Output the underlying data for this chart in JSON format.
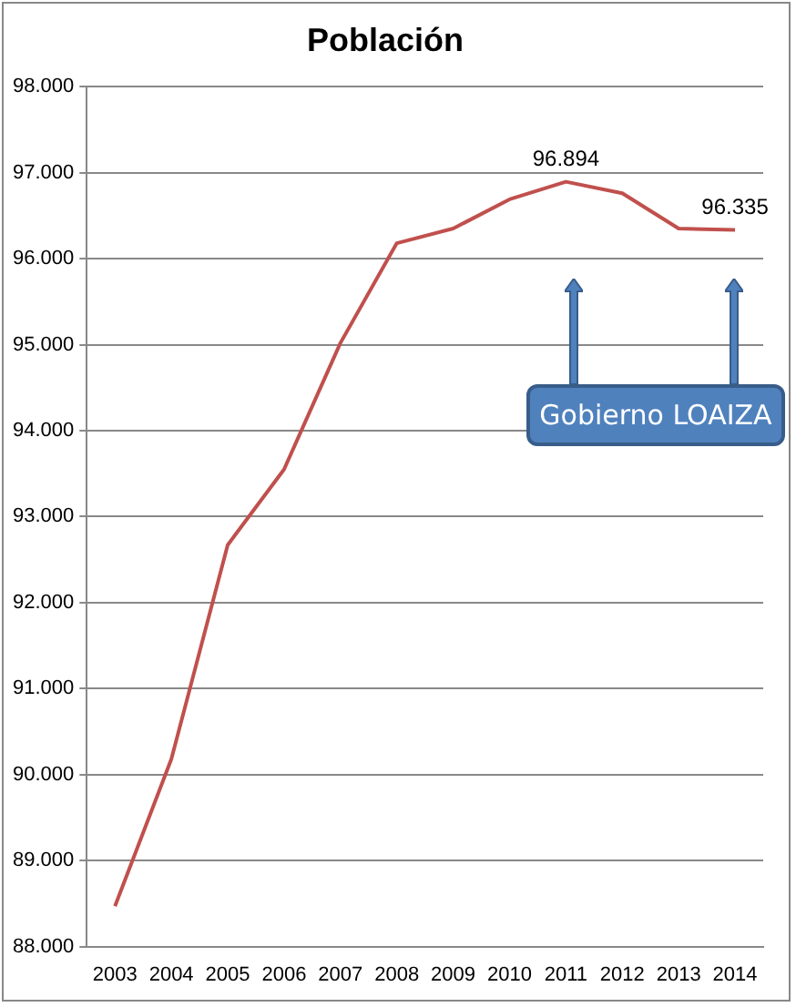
{
  "chart_data": {
    "type": "line",
    "title": "Población",
    "categories": [
      "2003",
      "2004",
      "2005",
      "2006",
      "2007",
      "2008",
      "2009",
      "2010",
      "2011",
      "2012",
      "2013",
      "2014"
    ],
    "series": [
      {
        "color": "#c0504d",
        "values": [
          88470,
          90180,
          92670,
          93550,
          95020,
          96180,
          96350,
          96690,
          96894,
          96760,
          96350,
          96335
        ],
        "value_labels": [
          null,
          null,
          null,
          null,
          null,
          null,
          null,
          null,
          "96.894",
          null,
          null,
          "96.335"
        ]
      }
    ],
    "ylim": [
      88000,
      98000
    ],
    "yticks": [
      {
        "value": 88000,
        "label": "88.000"
      },
      {
        "value": 89000,
        "label": "89.000"
      },
      {
        "value": 90000,
        "label": "90.000"
      },
      {
        "value": 91000,
        "label": "91.000"
      },
      {
        "value": 92000,
        "label": "92.000"
      },
      {
        "value": 93000,
        "label": "93.000"
      },
      {
        "value": 94000,
        "label": "94.000"
      },
      {
        "value": 95000,
        "label": "95.000"
      },
      {
        "value": 96000,
        "label": "96.000"
      },
      {
        "value": 97000,
        "label": "97.000"
      },
      {
        "value": 98000,
        "label": "98.000"
      }
    ],
    "grid": "y",
    "legend": false,
    "marker": "none",
    "line_style": "solid",
    "annotations": [
      "Gobierno LOAIZA"
    ]
  }
}
